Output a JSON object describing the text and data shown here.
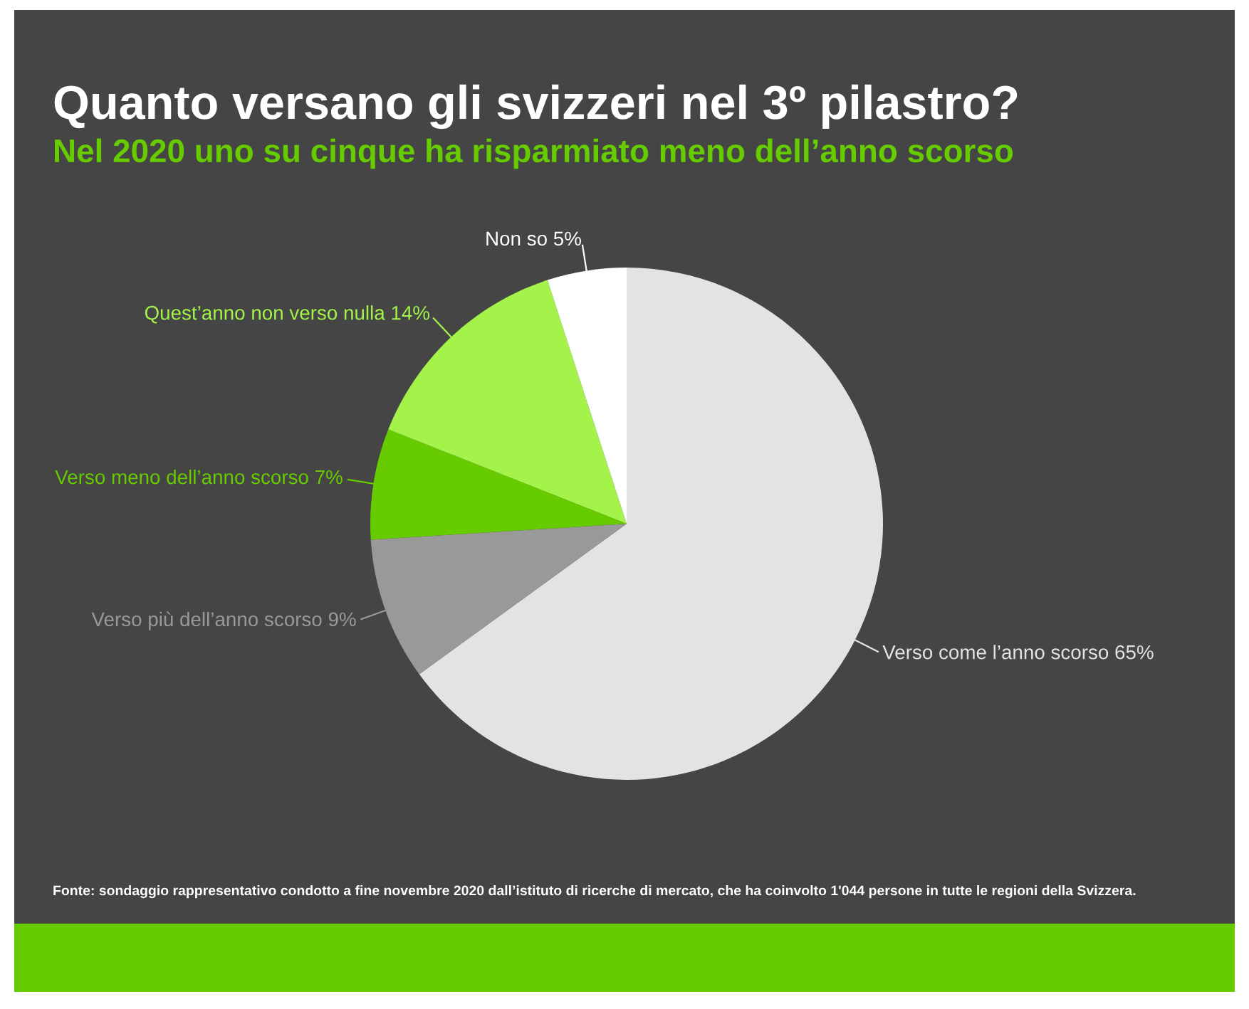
{
  "chart_data": {
    "type": "pie",
    "title": "Quanto versano gli svizzeri nel 3º pilastro?",
    "subtitle": "Nel 2020 uno su cinque ha risparmiato meno dell’anno scorso",
    "categories": [
      "Verso come l’anno scorso",
      "Verso più dell’anno scorso",
      "Verso meno dell’anno scorso",
      "Quest’anno non verso nulla",
      "Non so"
    ],
    "values": [
      65,
      9,
      7,
      14,
      5
    ],
    "value_labels": [
      "65%",
      "9%",
      "7%",
      "14%",
      "5%"
    ],
    "colors": [
      "#e3e3e3",
      "#999999",
      "#66cc00",
      "#a3f34b",
      "#ffffff"
    ],
    "annotations": [
      "Fonte: sondaggio rappresentativo condotto a fine novembre 2020 dall’istituto di ricerche di mercato, che ha coinvolto 1'044 persone in tutte le regioni della Svizzera."
    ]
  }
}
